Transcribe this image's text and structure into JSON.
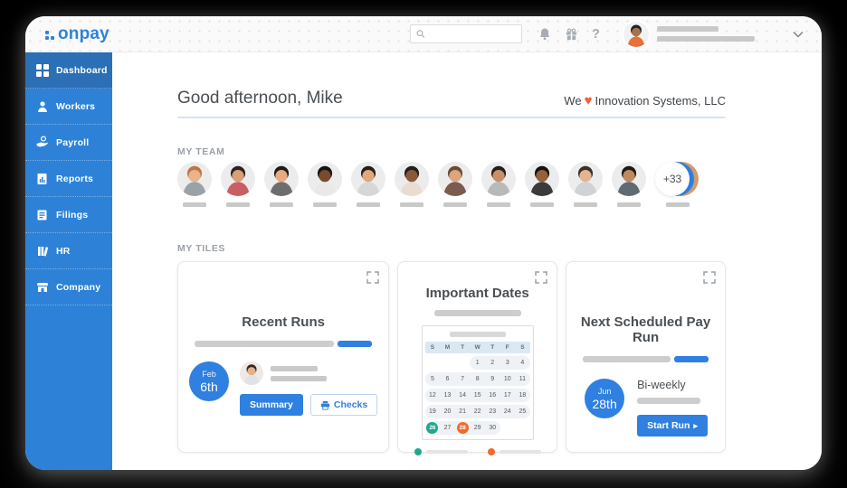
{
  "app": {
    "logo_text": "onpay",
    "brand_color": "#2f82d8"
  },
  "topbar": {
    "search_placeholder": "",
    "icons": [
      "bell-icon",
      "gift-icon",
      "help-icon"
    ],
    "help_glyph": "?",
    "user_avatar_colors": {
      "bg": "#f3f3f3",
      "hair": "#241f1c",
      "skin": "#a9714b",
      "shirt": "#e8703a"
    }
  },
  "sidebar": {
    "items": [
      {
        "label": "Dashboard",
        "icon": "dashboard-grid-icon",
        "active": true
      },
      {
        "label": "Workers",
        "icon": "workers-person-icon",
        "active": false
      },
      {
        "label": "Payroll",
        "icon": "payroll-hand-icon",
        "active": false
      },
      {
        "label": "Reports",
        "icon": "reports-doc-icon",
        "active": false
      },
      {
        "label": "Filings",
        "icon": "filings-doc-icon",
        "active": false
      },
      {
        "label": "HR",
        "icon": "hr-books-icon",
        "active": false
      },
      {
        "label": "Company",
        "icon": "company-store-icon",
        "active": false
      }
    ]
  },
  "header": {
    "greeting": "Good afternoon, Mike",
    "company_prefix": "We",
    "heart_glyph": "♥",
    "heart_color": "#f0613b",
    "company_name": "Innovation Systems, LLC"
  },
  "team": {
    "label": "MY TEAM",
    "member_count": 11,
    "overflow_badge": "+33",
    "avatar_palette": [
      {
        "bg": "#ececec",
        "hair": "#c27440",
        "skin": "#e8b48e",
        "shirt": "#9aa2a8"
      },
      {
        "bg": "#ececec",
        "hair": "#2e2023",
        "skin": "#d99f76",
        "shirt": "#c95f63"
      },
      {
        "bg": "#ececec",
        "hair": "#1f1b18",
        "skin": "#e7ab7e",
        "shirt": "#6d6d6d"
      },
      {
        "bg": "#ececec",
        "hair": "#141414",
        "skin": "#7a4a2b",
        "shirt": "#e9e9e9"
      },
      {
        "bg": "#ececec",
        "hair": "#26201c",
        "skin": "#e0a87c",
        "shirt": "#d7d7d7"
      },
      {
        "bg": "#ececec",
        "hair": "#241d1f",
        "skin": "#8a5a38",
        "shirt": "#e8ddcf"
      },
      {
        "bg": "#ececec",
        "hair": "#6e4a33",
        "skin": "#dca57f",
        "shirt": "#7c5a4e"
      },
      {
        "bg": "#ececec",
        "hair": "#22201e",
        "skin": "#c89066",
        "shirt": "#b9b9b9"
      },
      {
        "bg": "#ececec",
        "hair": "#17120f",
        "skin": "#95603a",
        "shirt": "#3a3a3a"
      },
      {
        "bg": "#ececec",
        "hair": "#3c2f26",
        "skin": "#e3b491",
        "shirt": "#cfd3d6"
      },
      {
        "bg": "#ececec",
        "hair": "#1d1a17",
        "skin": "#c08a5e",
        "shirt": "#5f6a72"
      }
    ]
  },
  "tiles": {
    "label": "MY TILES"
  },
  "recent_runs": {
    "title": "Recent Runs",
    "date_month": "Feb",
    "date_day": "6th",
    "summary_label": "Summary",
    "checks_label": "Checks",
    "avatar_colors": {
      "bg": "#f0e8e4",
      "hair": "#3a2620",
      "skin": "#e5b08c",
      "shirt": "#dfe3e6"
    }
  },
  "important_dates": {
    "title": "Important Dates",
    "day_headers": [
      "S",
      "M",
      "T",
      "W",
      "T",
      "F",
      "S"
    ],
    "weeks": [
      [
        null,
        null,
        null,
        1,
        2,
        3,
        4
      ],
      [
        5,
        6,
        7,
        8,
        9,
        10,
        11
      ],
      [
        12,
        13,
        14,
        15,
        16,
        17,
        18
      ],
      [
        19,
        20,
        21,
        22,
        23,
        24,
        25
      ],
      [
        26,
        27,
        28,
        29,
        30,
        null,
        null
      ]
    ],
    "highlights": {
      "teal_day": 26,
      "orange_day": 28
    },
    "teal_color": "#20a78e",
    "orange_color": "#ee6c2f",
    "legend": [
      {
        "color": "#20a78e"
      },
      {
        "color": "#ee6c2f"
      }
    ]
  },
  "next_pay_run": {
    "title": "Next Scheduled Pay Run",
    "date_month": "Jun",
    "date_day": "28th",
    "frequency": "Bi-weekly",
    "start_run_label": "Start Run",
    "start_run_arrow": "▸"
  }
}
